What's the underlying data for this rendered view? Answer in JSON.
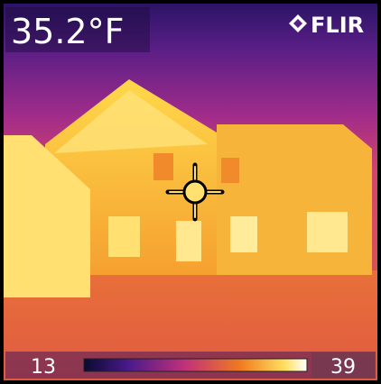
{
  "reading": {
    "temperature": "35.2°F"
  },
  "brand": "FLIR",
  "scale": {
    "min": "13",
    "max": "39"
  }
}
